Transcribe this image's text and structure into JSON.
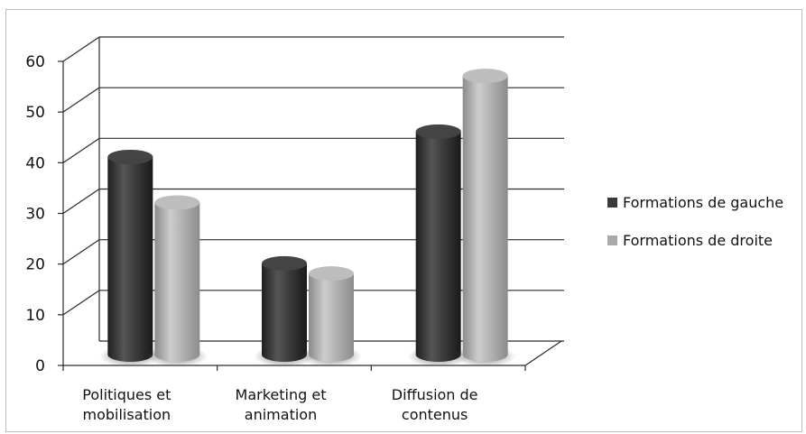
{
  "chart_data": {
    "type": "bar",
    "title": "",
    "xlabel": "",
    "ylabel": "",
    "categories": [
      [
        "Politiques et",
        "mobilisation"
      ],
      [
        "Marketing et",
        "animation"
      ],
      [
        "Diffusion de",
        "contenus"
      ]
    ],
    "series": [
      {
        "name": "Formations de gauche",
        "values": [
          39,
          18,
          44
        ],
        "color": "#3a3a3a"
      },
      {
        "name": "Formations de droite",
        "values": [
          30,
          16,
          55
        ],
        "color": "#a9a9a9"
      }
    ],
    "ylim": [
      0,
      60
    ],
    "yticks": [
      0,
      10,
      20,
      30,
      40,
      50,
      60
    ],
    "grid": true,
    "legend": "right",
    "style": "3d-cylinder"
  }
}
